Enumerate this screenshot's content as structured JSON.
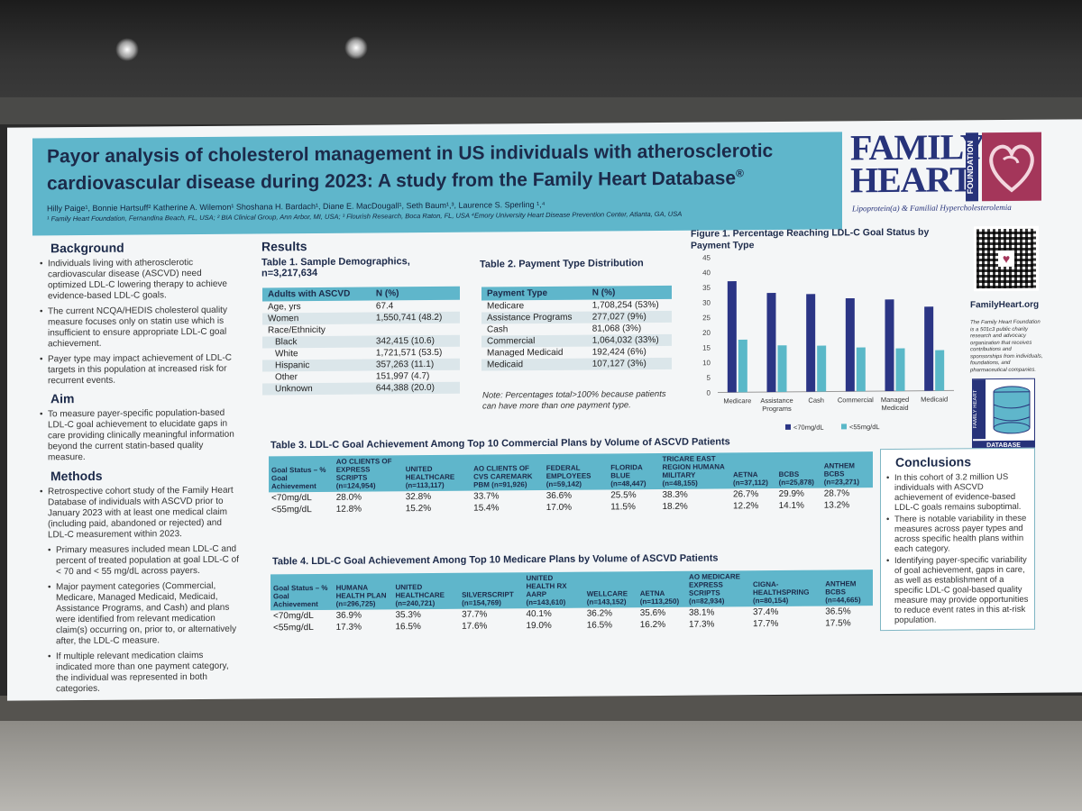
{
  "poster": {
    "title_line1": "Payor analysis of cholesterol management in US individuals with atherosclerotic",
    "title_line2": "cardiovascular disease during 2023: A study from the Family Heart Database",
    "title_reg": "®",
    "authors": "Hilly Paige¹, Bonnie Hartsuff² Katherine A. Wilemon¹ Shoshana H. Bardach¹, Diane E. MacDougall¹, Seth Baum¹,³, Laurence S. Sperling ¹,⁴",
    "affiliations": "¹ Family Heart Foundation, Fernandina Beach, FL, USA; ² BIA Clinical Group, Ann Arbor, MI, USA; ³ Flourish Research, Boca Raton, FL, USA ⁴Emory University Heart Disease Prevention Center, Atlanta, GA, USA"
  },
  "logo": {
    "line1": "FAMILY",
    "line2": "HEART",
    "foundation": "FOUNDATION",
    "tagline": "Lipoprotein(a) & Familial Hypercholesterolemia"
  },
  "background": {
    "heading": "Background",
    "items": [
      "Individuals living with atherosclerotic cardiovascular disease (ASCVD) need optimized LDL-C lowering therapy to achieve evidence-based LDL-C goals.",
      "The current NCQA/HEDIS cholesterol quality measure focuses only on statin use which is insufficient to ensure appropriate LDL-C goal achievement.",
      "Payer type may impact achievement of LDL-C targets in this population at increased risk for recurrent events."
    ]
  },
  "aim": {
    "heading": "Aim",
    "items": [
      "To measure payer-specific population-based LDL-C goal achievement to elucidate gaps in care providing clinically meaningful information beyond the current statin-based quality measure."
    ]
  },
  "methods": {
    "heading": "Methods",
    "items": [
      "Retrospective cohort study of the Family Heart Database of individuals with ASCVD prior to January 2023 with at least one medical claim (including paid, abandoned or rejected) and LDL-C measurement within 2023.",
      "Primary measures included mean LDL-C and percent of treated population at goal LDL-C of < 70 and < 55 mg/dL across payers.",
      "Major payment categories (Commercial, Medicare, Managed Medicaid, Medicaid, Assistance Programs, and Cash) and plans were identified from relevant medication claim(s) occurring on, prior to, or alternatively after, the LDL-C measure.",
      "If multiple relevant medication claims indicated more than one payment category, the individual was represented in both categories."
    ]
  },
  "results": {
    "heading": "Results",
    "table1": {
      "title": "Table 1. Sample Demographics, n=3,217,634",
      "headers": [
        "Adults with ASCVD",
        "N (%)"
      ],
      "rows": [
        [
          "Age, yrs",
          "67.4"
        ],
        [
          "Women",
          "1,550,741 (48.2)"
        ],
        [
          "Race/Ethnicity",
          ""
        ],
        [
          "Black",
          "342,415 (10.6)"
        ],
        [
          "White",
          "1,721,571 (53.5)"
        ],
        [
          "Hispanic",
          "357,263 (11.1)"
        ],
        [
          "Other",
          "151,997 (4.7)"
        ],
        [
          "Unknown",
          "644,388 (20.0)"
        ]
      ]
    },
    "table2": {
      "title": "Table 2. Payment Type Distribution",
      "headers": [
        "Payment Type",
        "N (%)"
      ],
      "rows": [
        [
          "Medicare",
          "1,708,254 (53%)"
        ],
        [
          "Assistance Programs",
          "277,027 (9%)"
        ],
        [
          "Cash",
          "81,068 (3%)"
        ],
        [
          "Commercial",
          "1,064,032 (33%)"
        ],
        [
          "Managed Medicaid",
          "192,424 (6%)"
        ],
        [
          "Medicaid",
          "107,127 (3%)"
        ]
      ],
      "note": "Note: Percentages total>100% because patients can have more than one payment type."
    },
    "table3": {
      "title": "Table 3. LDL-C Goal Achievement Among Top 10 Commercial Plans by Volume of ASCVD Patients",
      "headers": [
        "Goal Status – % Goal Achievement",
        "AO CLIENTS OF EXPRESS SCRIPTS (n=124,954)",
        "UNITED HEALTHCARE (n=113,117)",
        "AO CLIENTS OF CVS CAREMARK PBM (n=91,926)",
        "FEDERAL EMPLOYEES (n=59,142)",
        "FLORIDA BLUE (n=48,447)",
        "TRICARE EAST REGION HUMANA MILITARY (n=48,155)",
        "AETNA (n=37,112)",
        "BCBS (n=25,878)",
        "ANTHEM BCBS (n=23,271)"
      ],
      "rows": [
        [
          "<70mg/dL",
          "28.0%",
          "32.8%",
          "33.7%",
          "36.6%",
          "25.5%",
          "38.3%",
          "26.7%",
          "29.9%",
          "28.7%"
        ],
        [
          "<55mg/dL",
          "12.8%",
          "15.2%",
          "15.4%",
          "17.0%",
          "11.5%",
          "18.2%",
          "12.2%",
          "14.1%",
          "13.2%"
        ]
      ]
    },
    "table4": {
      "title": "Table 4. LDL-C Goal Achievement Among Top 10 Medicare Plans by Volume of ASCVD Patients",
      "headers": [
        "Goal Status – % Goal Achievement",
        "HUMANA HEALTH PLAN (n=296,725)",
        "UNITED HEALTHCARE (n=240,721)",
        "SILVERSCRIPT (n=154,769)",
        "UNITED HEALTH RX AARP (n=143,610)",
        "WELLCARE (n=143,152)",
        "AETNA (n=113,250)",
        "AO MEDICARE EXPRESS SCRIPTS (n=82,934)",
        "CIGNA-HEALTHSPRING (n=80,154)",
        "ANTHEM BCBS (n=44,665)"
      ],
      "rows": [
        [
          "<70mg/dL",
          "36.9%",
          "35.3%",
          "37.7%",
          "40.1%",
          "36.2%",
          "35.6%",
          "38.1%",
          "37.4%",
          "36.5%"
        ],
        [
          "<55mg/dL",
          "17.3%",
          "16.5%",
          "17.6%",
          "19.0%",
          "16.5%",
          "16.2%",
          "17.3%",
          "17.7%",
          "17.5%"
        ]
      ]
    }
  },
  "chart_data": {
    "type": "bar",
    "title": "Figure 1. Percentage Reaching LDL-C Goal Status by Payment Type",
    "categories": [
      "Medicare",
      "Assistance Programs",
      "Cash",
      "Commercial",
      "Managed Medicaid",
      "Medicaid"
    ],
    "series": [
      {
        "name": "<70mg/dL",
        "color": "#2b3585",
        "values": [
          37,
          33,
          32.5,
          31,
          30.5,
          28
        ]
      },
      {
        "name": "<55mg/dL",
        "color": "#5ab8c8",
        "values": [
          17.5,
          15.5,
          15.3,
          14.6,
          14.2,
          13.5
        ]
      }
    ],
    "ylim": [
      0,
      45
    ],
    "yticks": [
      0,
      5,
      10,
      15,
      20,
      25,
      30,
      35,
      40,
      45
    ],
    "legend": "bottom"
  },
  "sidebar": {
    "url": "FamilyHeart.org",
    "description": "The Family Heart Foundation is a 501c3 public charity research and advocacy organization that receives contributions and sponsorships from individuals, foundations, and pharmaceutical companies.",
    "db_label1": "FAMILY HEART",
    "db_label2": "DATABASE"
  },
  "conclusions": {
    "heading": "Conclusions",
    "items": [
      "In this cohort of 3.2 million US individuals with ASCVD achievement of evidence-based LDL-C goals remains suboptimal.",
      "There is notable variability in these measures across payer types and across specific health plans within each category.",
      "Identifying payer-specific variability of goal achievement, gaps in care, as well as establishment of a specific LDL-C goal-based quality measure may provide opportunities to reduce event rates in this at-risk population."
    ]
  }
}
